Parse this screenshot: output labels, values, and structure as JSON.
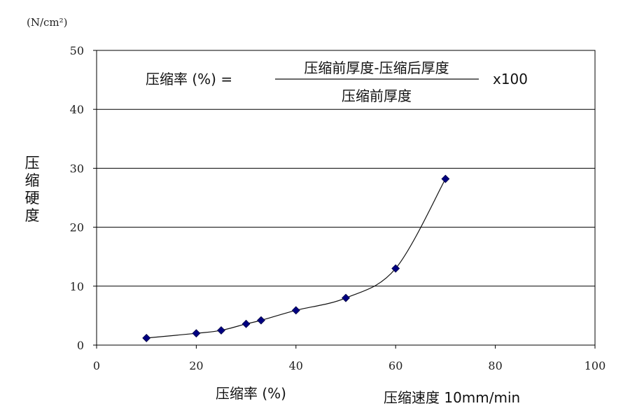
{
  "chart_data": {
    "type": "line",
    "y_unit": "(N/cm²)",
    "ylabel": "压缩硬度",
    "xlabel": "压缩率 (%)",
    "condition": "压缩速度 10mm/min",
    "formula": {
      "lhs": "压缩率 (%)  =",
      "numerator": "压缩前厚度-压缩后厚度",
      "denominator": "压缩前厚度",
      "multiplier": "x100"
    },
    "xlim": [
      0,
      100
    ],
    "ylim": [
      0,
      50
    ],
    "xticks": [
      0,
      20,
      40,
      60,
      80,
      100
    ],
    "yticks": [
      0,
      10,
      20,
      30,
      40,
      50
    ],
    "grid": "horizontal",
    "series": [
      {
        "color": "#000080",
        "x": [
          10,
          20,
          25,
          30,
          33,
          40,
          50,
          60,
          70
        ],
        "y": [
          1.2,
          2.0,
          2.5,
          3.6,
          4.2,
          5.9,
          8.0,
          13.0,
          28.2
        ]
      }
    ]
  }
}
